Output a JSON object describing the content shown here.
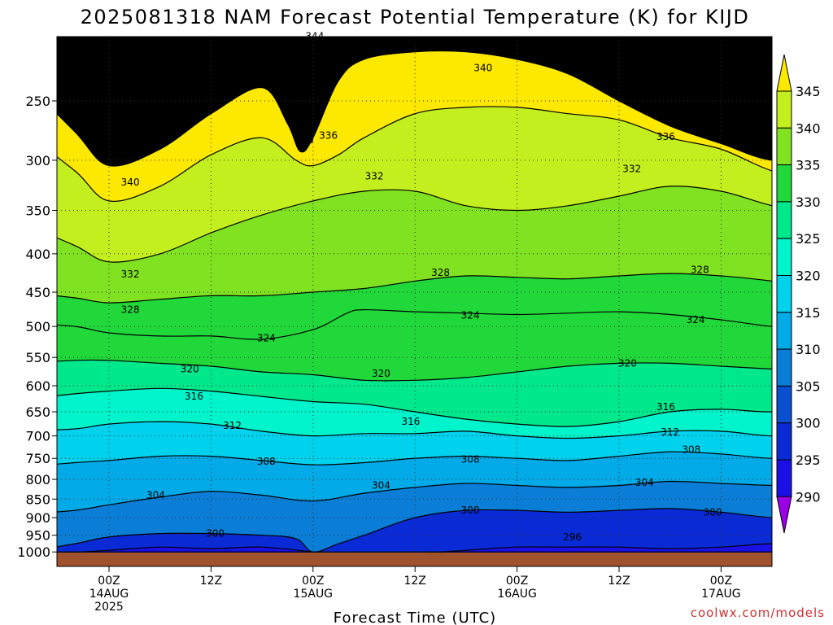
{
  "title": "2025081318 NAM Forecast Potential Temperature (K) for KIJD",
  "credit": "coolwx.com/models",
  "chart_data": {
    "type": "heatmap",
    "title": "2025081318 NAM Forecast Potential Temperature (K) for KIJD",
    "xlabel": "Forecast Time (UTC)",
    "ylabel": "",
    "y_scale": "log",
    "y_inverted": true,
    "xlim_hours": [
      -4.5,
      102
    ],
    "ylim_hpa": [
      1050,
      200
    ],
    "y_ticks": [
      250,
      300,
      350,
      400,
      450,
      500,
      550,
      600,
      650,
      700,
      750,
      800,
      850,
      900,
      950,
      1000
    ],
    "x_ticks": [
      {
        "h": 6,
        "lines": [
          "00Z",
          "14AUG",
          "2025"
        ]
      },
      {
        "h": 18,
        "lines": [
          "12Z"
        ]
      },
      {
        "h": 30,
        "lines": [
          "00Z",
          "15AUG"
        ]
      },
      {
        "h": 42,
        "lines": [
          "12Z"
        ]
      },
      {
        "h": 54,
        "lines": [
          "00Z",
          "16AUG"
        ]
      },
      {
        "h": 66,
        "lines": [
          "12Z"
        ]
      },
      {
        "h": 78,
        "lines": [
          "00Z",
          "17AUG"
        ]
      }
    ],
    "colorbar": {
      "levels": [
        290,
        295,
        300,
        305,
        310,
        315,
        320,
        325,
        330,
        335,
        340,
        345
      ],
      "labels": [
        "290",
        "295",
        "300",
        "305",
        "310",
        "315",
        "320",
        "325",
        "330",
        "335",
        "340",
        "345"
      ],
      "colors": [
        "#9a00e6",
        "#1a10e6",
        "#0a2ad6",
        "#0850d0",
        "#0a7ed6",
        "#02aae8",
        "#00d2ee",
        "#00f4cc",
        "#00e88c",
        "#20d83a",
        "#80e220",
        "#c4ef1e",
        "#fde800"
      ]
    },
    "series": [
      {
        "name": "290",
        "hours": [
          -4,
          96
        ],
        "hpa": [
          1000,
          1000
        ]
      },
      {
        "name": "295",
        "hours": [
          -4,
          6,
          12,
          18,
          24,
          30,
          33,
          36,
          42,
          48,
          54,
          60,
          66,
          72,
          78,
          84,
          90,
          96
        ],
        "hpa": [
          1010,
          995,
          985,
          990,
          985,
          1000,
          1010,
          1010,
          1005,
          995,
          985,
          985,
          985,
          990,
          985,
          975,
          980,
          990
        ]
      },
      {
        "name": "300",
        "hours": [
          -4,
          2,
          6,
          12,
          18,
          24,
          28,
          30,
          33,
          36,
          42,
          48,
          54,
          60,
          66,
          72,
          78,
          84,
          90,
          96
        ],
        "hpa": [
          1000,
          975,
          955,
          945,
          945,
          950,
          960,
          1000,
          975,
          950,
          900,
          880,
          880,
          885,
          880,
          875,
          885,
          900,
          905,
          915
        ]
      },
      {
        "name": "304",
        "hours": [
          -4,
          2,
          6,
          12,
          18,
          24,
          30,
          36,
          42,
          48,
          54,
          60,
          66,
          72,
          78,
          84,
          90,
          96
        ],
        "hpa": [
          890,
          880,
          865,
          845,
          830,
          840,
          855,
          835,
          820,
          810,
          815,
          820,
          815,
          805,
          810,
          815,
          815,
          805
        ]
      },
      {
        "name": "308",
        "hours": [
          -4,
          2,
          6,
          12,
          18,
          24,
          30,
          36,
          42,
          48,
          54,
          60,
          66,
          72,
          78,
          84,
          90,
          96
        ],
        "hpa": [
          770,
          760,
          755,
          745,
          745,
          755,
          765,
          760,
          750,
          745,
          750,
          755,
          745,
          735,
          740,
          750,
          745,
          730
        ]
      },
      {
        "name": "312",
        "hours": [
          -4,
          2,
          6,
          12,
          18,
          24,
          30,
          36,
          42,
          48,
          54,
          60,
          66,
          72,
          78,
          84,
          90,
          96
        ],
        "hpa": [
          690,
          685,
          675,
          670,
          675,
          690,
          700,
          695,
          695,
          690,
          700,
          705,
          700,
          690,
          690,
          700,
          695,
          680
        ]
      },
      {
        "name": "316",
        "hours": [
          -4,
          2,
          6,
          12,
          18,
          24,
          30,
          36,
          42,
          48,
          54,
          60,
          66,
          72,
          78,
          84,
          90,
          96
        ],
        "hpa": [
          625,
          615,
          610,
          605,
          610,
          620,
          630,
          635,
          650,
          665,
          675,
          680,
          670,
          650,
          645,
          650,
          640,
          625
        ]
      },
      {
        "name": "320",
        "hours": [
          -4,
          2,
          6,
          12,
          18,
          24,
          30,
          36,
          42,
          48,
          54,
          60,
          66,
          72,
          78,
          84,
          90,
          96
        ],
        "hpa": [
          560,
          555,
          555,
          560,
          565,
          575,
          580,
          590,
          590,
          585,
          575,
          565,
          560,
          560,
          565,
          570,
          575,
          570
        ]
      },
      {
        "name": "324",
        "hours": [
          -4,
          2,
          6,
          12,
          18,
          24,
          30,
          34,
          36,
          42,
          48,
          54,
          60,
          66,
          72,
          78,
          84,
          90,
          96
        ],
        "hpa": [
          495,
          500,
          510,
          515,
          515,
          520,
          505,
          480,
          475,
          478,
          480,
          482,
          480,
          478,
          482,
          490,
          500,
          505,
          500
        ]
      },
      {
        "name": "328",
        "hours": [
          -4,
          2,
          6,
          12,
          18,
          24,
          30,
          36,
          42,
          48,
          54,
          60,
          66,
          72,
          78,
          84,
          90,
          96
        ],
        "hpa": [
          450,
          458,
          465,
          460,
          455,
          455,
          450,
          445,
          435,
          428,
          430,
          432,
          428,
          425,
          428,
          435,
          445,
          450
        ]
      },
      {
        "name": "332",
        "hours": [
          -4,
          2,
          6,
          12,
          18,
          24,
          30,
          36,
          42,
          48,
          54,
          60,
          66,
          72,
          78,
          84,
          90,
          96
        ],
        "hpa": [
          365,
          390,
          410,
          400,
          375,
          355,
          340,
          330,
          330,
          345,
          350,
          345,
          335,
          325,
          330,
          345,
          355,
          360
        ]
      },
      {
        "name": "336",
        "hours": [
          -4,
          2,
          6,
          12,
          18,
          24,
          28,
          30,
          33,
          36,
          42,
          48,
          54,
          60,
          66,
          72,
          78,
          84,
          90,
          96
        ],
        "hpa": [
          275,
          310,
          340,
          325,
          295,
          280,
          300,
          305,
          295,
          280,
          260,
          255,
          255,
          260,
          265,
          280,
          290,
          310,
          320,
          320
        ]
      },
      {
        "name": "340",
        "hours": [
          -4,
          2,
          6,
          12,
          18,
          24,
          27,
          28.5,
          30,
          33,
          36,
          42,
          48,
          54,
          60,
          66,
          72,
          78,
          84,
          90,
          96
        ],
        "hpa": [
          235,
          275,
          305,
          290,
          260,
          240,
          268,
          292,
          280,
          235,
          220,
          215,
          215,
          220,
          230,
          250,
          270,
          285,
          300,
          295,
          290
        ]
      },
      {
        "name": "344",
        "hours": [
          -4,
          2,
          6,
          12,
          18,
          24,
          30,
          36,
          42,
          48,
          54,
          60,
          66,
          72,
          78,
          84,
          90,
          96
        ],
        "hpa": [
          205,
          220,
          230,
          220,
          210,
          205,
          205,
          205,
          208,
          210,
          214,
          220,
          225,
          230,
          238,
          245,
          255,
          260
        ]
      }
    ],
    "contour_labels": [
      {
        "text": "344",
        "h": 30.2,
        "p": 205
      },
      {
        "text": "340",
        "h": 50,
        "p": 226
      },
      {
        "text": "340",
        "h": 29,
        "p": 282
      },
      {
        "text": "336",
        "h": 31.8,
        "p": 278
      },
      {
        "text": "336",
        "h": 71.5,
        "p": 279
      },
      {
        "text": "340",
        "h": 8.5,
        "p": 321
      },
      {
        "text": "332",
        "h": 37.2,
        "p": 315
      },
      {
        "text": "332",
        "h": 67.5,
        "p": 308
      },
      {
        "text": "332",
        "h": 8.5,
        "p": 426
      },
      {
        "text": "328",
        "h": 8.5,
        "p": 475
      },
      {
        "text": "328",
        "h": 45,
        "p": 424
      },
      {
        "text": "328",
        "h": 75.5,
        "p": 420
      },
      {
        "text": "324",
        "h": 24.5,
        "p": 518
      },
      {
        "text": "324",
        "h": 48.5,
        "p": 483
      },
      {
        "text": "324",
        "h": 75,
        "p": 490
      },
      {
        "text": "320",
        "h": 15.5,
        "p": 570
      },
      {
        "text": "320",
        "h": 38,
        "p": 578
      },
      {
        "text": "320",
        "h": 67,
        "p": 560
      },
      {
        "text": "316",
        "h": 16,
        "p": 620
      },
      {
        "text": "316",
        "h": 41.5,
        "p": 670
      },
      {
        "text": "316",
        "h": 71.5,
        "p": 640
      },
      {
        "text": "312",
        "h": 20.5,
        "p": 678
      },
      {
        "text": "312",
        "h": 72,
        "p": 692
      },
      {
        "text": "308",
        "h": 24.5,
        "p": 757
      },
      {
        "text": "308",
        "h": 48.5,
        "p": 752
      },
      {
        "text": "308",
        "h": 74.5,
        "p": 730
      },
      {
        "text": "304",
        "h": 11.5,
        "p": 840
      },
      {
        "text": "304",
        "h": 38,
        "p": 815
      },
      {
        "text": "304",
        "h": 69,
        "p": 808
      },
      {
        "text": "300",
        "h": 18.5,
        "p": 945
      },
      {
        "text": "300",
        "h": 48.5,
        "p": 880
      },
      {
        "text": "300",
        "h": 77,
        "p": 885
      },
      {
        "text": "296",
        "h": 60.5,
        "p": 955
      }
    ]
  }
}
